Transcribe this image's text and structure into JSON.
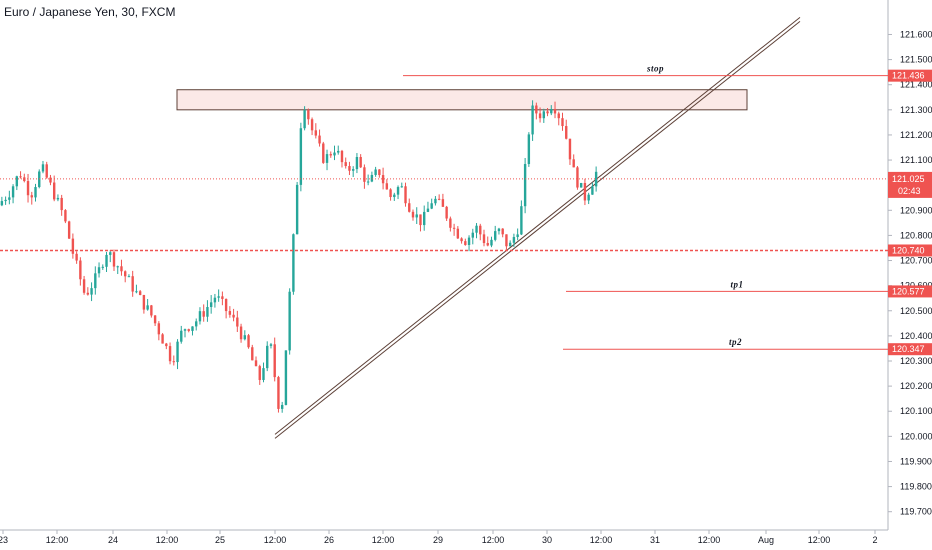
{
  "header": {
    "title": "Euro / Japanese Yen, 30, FXCM"
  },
  "colors": {
    "up": "#26a69a",
    "down": "#ef5350",
    "price_tag": "#ef5350",
    "zone_fill": "#fbe9e7",
    "trendline": "#5d4037"
  },
  "chart_data": {
    "type": "candlestick",
    "title": "Euro / Japanese Yen, 30, FXCM",
    "ylim": [
      119.62,
      121.66
    ],
    "y_ticks": [
      "121.600",
      "121.500",
      "121.400",
      "121.300",
      "121.200",
      "121.100",
      "121.000",
      "120.900",
      "120.800",
      "120.700",
      "120.600",
      "120.500",
      "120.400",
      "120.300",
      "120.200",
      "120.100",
      "120.000",
      "119.900",
      "119.800",
      "119.700"
    ],
    "x_ticks": [
      "23",
      "12:00",
      "24",
      "12:00",
      "25",
      "12:00",
      "26",
      "12:00",
      "29",
      "12:00",
      "30",
      "12:00",
      "31",
      "12:00",
      "Aug",
      "12:00",
      "2"
    ],
    "current_price": {
      "value": "121.025",
      "countdown": "02:43"
    },
    "levels": [
      {
        "label": "stop",
        "value": "121.436"
      },
      {
        "label": "tp1",
        "value": "120.577"
      },
      {
        "label": "tp2",
        "value": "120.347"
      },
      {
        "label": "",
        "value": "120.740"
      }
    ],
    "resistance_zone": {
      "low": 121.3,
      "high": 121.38
    },
    "trendline": {
      "from": 120.0,
      "to": 121.66
    },
    "price_path": [
      120.92,
      120.97,
      121.05,
      120.96,
      121.07,
      120.98,
      120.88,
      120.71,
      120.56,
      120.63,
      120.74,
      120.68,
      120.62,
      120.55,
      120.49,
      120.4,
      120.3,
      120.43,
      120.45,
      120.5,
      120.56,
      120.5,
      120.44,
      120.35,
      120.22,
      120.38,
      120.06,
      120.68,
      121.35,
      121.2,
      121.1,
      121.15,
      121.05,
      121.1,
      121.0,
      121.06,
      120.95,
      121.0,
      120.9,
      120.85,
      120.95,
      120.9,
      120.82,
      120.78,
      120.83,
      120.76,
      120.82,
      120.75,
      120.85,
      121.3,
      121.28,
      121.33,
      121.24,
      121.04,
      120.95,
      121.05
    ]
  }
}
